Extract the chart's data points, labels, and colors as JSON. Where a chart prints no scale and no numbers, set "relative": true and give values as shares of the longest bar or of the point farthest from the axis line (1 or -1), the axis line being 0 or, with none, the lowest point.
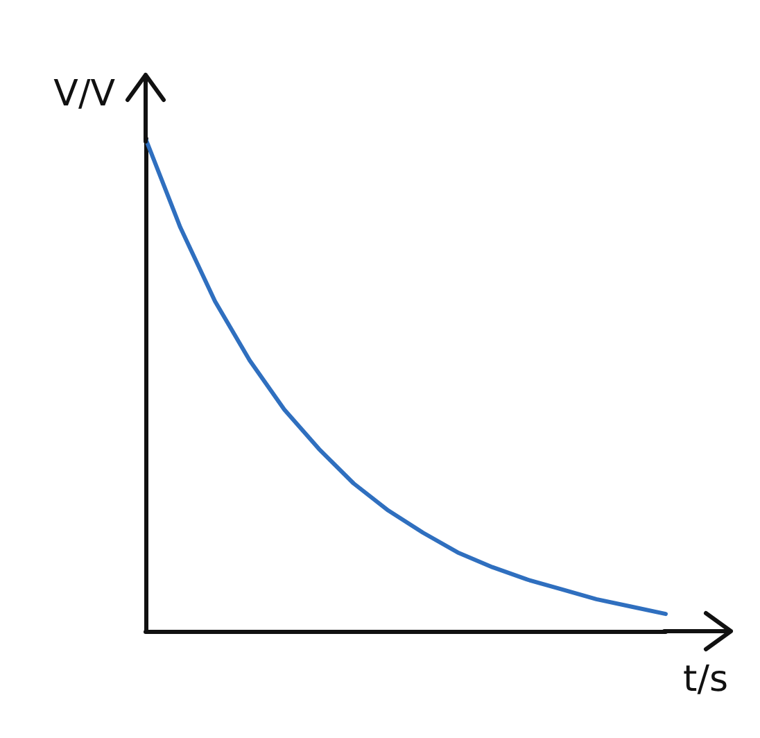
{
  "chart_data": {
    "type": "line",
    "relative": true,
    "xlabel": "t/s",
    "ylabel": "V/V",
    "categories": [
      null,
      null,
      null,
      null,
      null,
      null,
      null,
      null,
      null,
      null,
      null,
      null,
      null,
      null,
      null,
      null
    ],
    "series": [
      {
        "color": "#2f6fbf",
        "values": [
          1,
          0.82,
          0.67,
          0.55,
          0.45,
          0.37,
          0.3,
          0.245,
          0.2,
          0.16,
          0.13,
          0.105,
          0.085,
          0.065,
          0.05,
          0.035
        ]
      }
    ],
    "marker": "none",
    "line_style": "solid"
  }
}
